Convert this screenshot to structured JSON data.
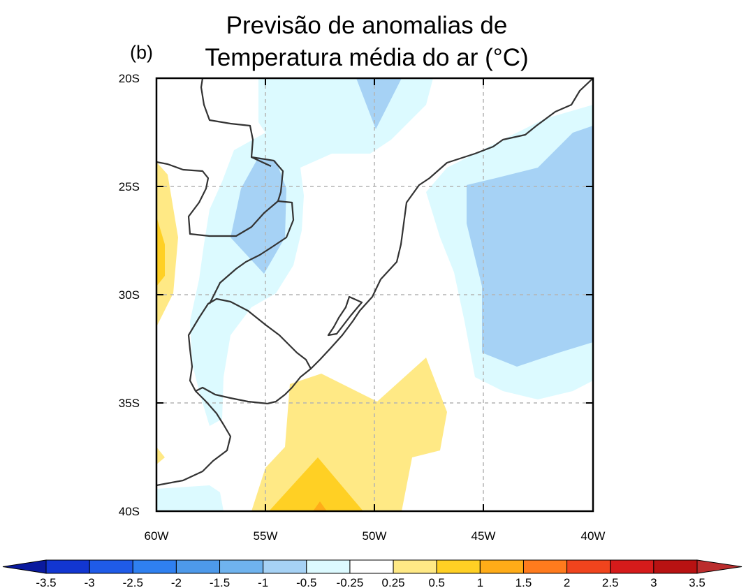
{
  "panel_label": "(b)",
  "title": {
    "line1": "Previsão de anomalias de",
    "line2": "Temperatura média do ar (°C)"
  },
  "axes": {
    "lat_labels": [
      "20S",
      "25S",
      "30S",
      "35S",
      "40S"
    ],
    "lon_labels": [
      "60W",
      "55W",
      "50W",
      "45W",
      "40W"
    ],
    "lat_range": [
      -40,
      -20
    ],
    "lon_range": [
      -60,
      -40
    ],
    "grid": true
  },
  "colorbar": {
    "labels": [
      "-3.5",
      "-3",
      "-2.5",
      "-2",
      "-1.5",
      "-1",
      "-0.5",
      "-0.25",
      "0.25",
      "0.5",
      "1",
      "1.5",
      "2",
      "2.5",
      "3",
      "3.5"
    ],
    "colors": [
      "#0a1a9e",
      "#1236d1",
      "#1f5be8",
      "#2f80f0",
      "#4d99ea",
      "#6fb3ee",
      "#a6d2f5",
      "#dcfaff",
      "#ffffff",
      "#ffe985",
      "#ffd024",
      "#ffac18",
      "#ff7b1d",
      "#f0441d",
      "#d61b1b",
      "#b81212",
      "#bb2d2d"
    ]
  },
  "colors": {
    "anom_neg_025_05": "#dcfaff",
    "anom_neg_05_1": "#a6d2f5",
    "anom_pos_025_05": "#ffe985",
    "anom_pos_05_1": "#ffd024",
    "anom_pos_1_15": "#ffac18"
  }
}
